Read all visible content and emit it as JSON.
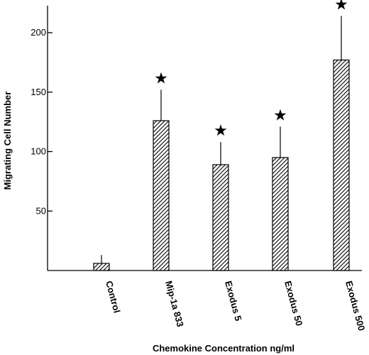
{
  "chart_data": {
    "type": "bar",
    "categories": [
      "Control",
      "Mip-1a 833",
      "Exodus 5",
      "Exodus 50",
      "Exodus 500"
    ],
    "values": [
      6,
      126,
      89,
      95,
      177
    ],
    "error_upper": [
      13,
      152,
      108,
      121,
      214
    ],
    "significant": [
      false,
      true,
      true,
      true,
      true
    ],
    "significance_marker": "★",
    "xlabel": "Chemokine Concentration ng/ml",
    "ylabel": "Migrating Cell Number",
    "yticks": [
      50,
      100,
      150,
      200
    ],
    "ylim": [
      0,
      200
    ],
    "grid": false,
    "bar_pattern": "diagonal-hatch"
  }
}
